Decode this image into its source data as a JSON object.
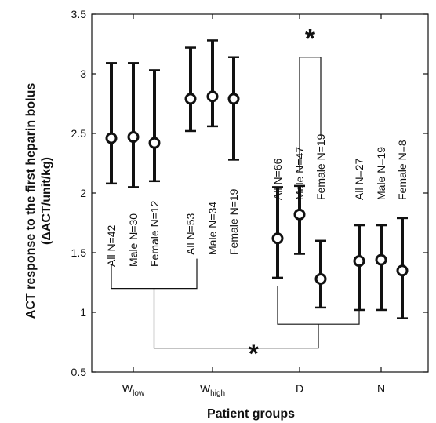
{
  "chart_data": {
    "type": "errorbar",
    "xlabel": "Patient groups",
    "ylabel": "ACT response to the first heparin bolus",
    "ylabel_unit": "(ΔACT/unit/kg)",
    "ylim": [
      0.5,
      3.5
    ],
    "yticks": [
      "0.5",
      "1",
      "1.5",
      "2",
      "2.5",
      "3",
      "3.5"
    ],
    "categories": [
      {
        "base": "W",
        "sub": "low"
      },
      {
        "base": "W",
        "sub": "high"
      },
      {
        "base": "D",
        "sub": ""
      },
      {
        "base": "N",
        "sub": ""
      }
    ],
    "series": [
      {
        "name": "All",
        "values": [
          2.46,
          2.79,
          1.62,
          1.43
        ],
        "lower": [
          2.08,
          2.52,
          1.29,
          1.02
        ],
        "upper": [
          3.09,
          3.22,
          2.05,
          1.73
        ]
      },
      {
        "name": "Male",
        "values": [
          2.47,
          2.81,
          1.82,
          1.44
        ],
        "lower": [
          2.05,
          2.56,
          1.49,
          1.02
        ],
        "upper": [
          3.09,
          3.28,
          2.06,
          1.73
        ]
      },
      {
        "name": "Female",
        "values": [
          2.42,
          2.79,
          1.28,
          1.35
        ],
        "lower": [
          2.1,
          2.28,
          1.04,
          0.95
        ],
        "upper": [
          3.03,
          3.14,
          1.6,
          1.79
        ]
      }
    ],
    "n_labels": [
      [
        "All N=42",
        "Male N=30",
        "Female N=12"
      ],
      [
        "All N=53",
        "Male N=34",
        "Female N=19"
      ],
      [
        "All N=66",
        "Male N=47",
        "Female N=19"
      ],
      [
        "All N=27",
        "Male N=19",
        "Female N=8"
      ]
    ],
    "significance": [
      {
        "between": "Male D vs Female D",
        "marker": "*"
      },
      {
        "between": "W (low + high) vs D + N",
        "marker": "*"
      }
    ]
  }
}
